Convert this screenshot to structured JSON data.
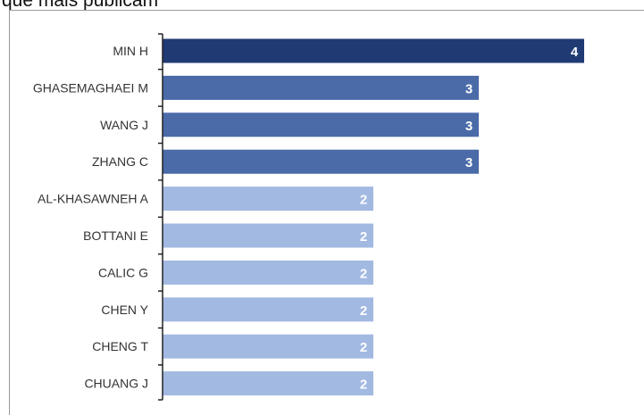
{
  "chart_data": {
    "type": "bar",
    "orientation": "horizontal",
    "title": "que mais publicam",
    "categories": [
      "MIN H",
      "GHASEMAGHAEI M",
      "WANG J",
      "ZHANG C",
      "AL-KHASAWNEH A",
      "BOTTANI E",
      "CALIC G",
      "CHEN Y",
      "CHENG T",
      "CHUANG J"
    ],
    "values": [
      4,
      3,
      3,
      3,
      2,
      2,
      2,
      2,
      2,
      2
    ],
    "xlim": [
      0,
      4
    ],
    "grid": false,
    "legend": "none",
    "data_labels": [
      "4",
      "3",
      "3",
      "3",
      "2",
      "2",
      "2",
      "2",
      "2",
      "2"
    ],
    "colors": {
      "4": "#203a74",
      "3": "#4a6aa8",
      "2": "#a2b9e2",
      "axis": "#222222",
      "label": "#333333",
      "value_label": "#ffffff"
    }
  }
}
